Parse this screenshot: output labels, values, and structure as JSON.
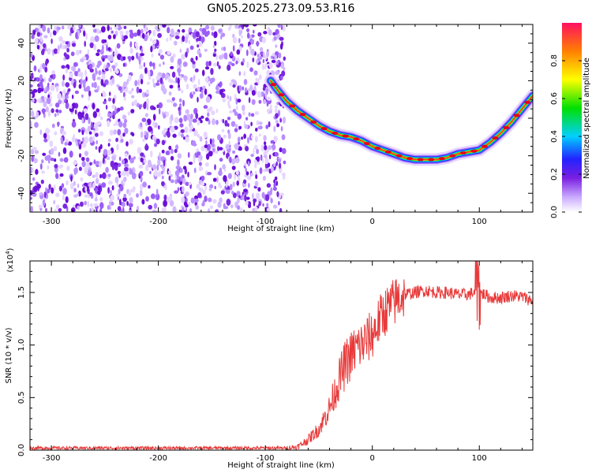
{
  "title": "GN05.2025.273.09.53.R16",
  "chart_data": [
    {
      "type": "heatmap",
      "xlabel": "Height of straight line (km)",
      "ylabel": "Frequency (Hz)",
      "xlim": [
        -320,
        150
      ],
      "ylim": [
        -50,
        50
      ],
      "xticks": [
        -300,
        -200,
        -100,
        0,
        100
      ],
      "xtick_labels": [
        "-300",
        "-200",
        "-100",
        "0",
        "100"
      ],
      "yticks": [
        40,
        20,
        0,
        -20,
        -40
      ],
      "ytick_labels": [
        "40",
        "20",
        "0",
        "-20",
        "-40"
      ],
      "noise_region_x": [
        -320,
        -82
      ],
      "signal_trace": {
        "x": [
          -95,
          -90,
          -80,
          -70,
          -60,
          -50,
          -40,
          -30,
          -20,
          -10,
          0,
          10,
          20,
          30,
          40,
          50,
          60,
          70,
          80,
          90,
          100,
          110,
          120,
          130,
          140,
          150
        ],
        "y": [
          20,
          16,
          9,
          4,
          0,
          -4,
          -7,
          -9,
          -10,
          -12,
          -15,
          -17,
          -19,
          -21,
          -22,
          -22,
          -22,
          -21,
          -19,
          -18,
          -17,
          -13,
          -8,
          -2,
          5,
          12
        ]
      },
      "colorbar": {
        "label": "Normalized spectral amplitude",
        "range": [
          0,
          1
        ],
        "ticks": [
          0.0,
          0.2,
          0.4,
          0.6,
          0.8
        ],
        "tick_labels": [
          "0.0",
          "0.2",
          "0.4",
          "0.6",
          "0.8"
        ]
      },
      "grid": false
    },
    {
      "type": "line",
      "xlabel": "Height of straight line (km)",
      "ylabel": "SNR (10 * v/v)",
      "y_multiplier": "(x10",
      "y_multiplier_exp": "4",
      "y_multiplier_close": ")",
      "xlim": [
        -320,
        150
      ],
      "ylim": [
        0,
        1.8
      ],
      "xticks": [
        -300,
        -200,
        -100,
        0,
        100
      ],
      "xtick_labels": [
        "-300",
        "-200",
        "-100",
        "0",
        "100"
      ],
      "yticks": [
        0.0,
        0.5,
        1.0,
        1.5
      ],
      "ytick_labels": [
        "0.0",
        "0.5",
        "1.0",
        "1.5"
      ],
      "series": [
        {
          "color": "#e83a3a",
          "x": [
            -320,
            -300,
            -250,
            -200,
            -150,
            -100,
            -80,
            -70,
            -60,
            -50,
            -45,
            -40,
            -35,
            -30,
            -25,
            -20,
            -15,
            -10,
            -5,
            0,
            5,
            10,
            15,
            20,
            25,
            30,
            40,
            50,
            60,
            70,
            80,
            90,
            95,
            100,
            105,
            110,
            120,
            130,
            140,
            150
          ],
          "y": [
            0.02,
            0.02,
            0.02,
            0.02,
            0.02,
            0.02,
            0.02,
            0.03,
            0.1,
            0.2,
            0.3,
            0.4,
            0.55,
            0.7,
            0.82,
            0.9,
            0.97,
            1.0,
            1.05,
            1.1,
            1.2,
            1.3,
            1.35,
            1.4,
            1.45,
            1.48,
            1.5,
            1.52,
            1.5,
            1.5,
            1.48,
            1.48,
            1.5,
            1.5,
            1.48,
            1.45,
            1.45,
            1.47,
            1.46,
            1.42
          ]
        }
      ],
      "grid": false
    }
  ]
}
